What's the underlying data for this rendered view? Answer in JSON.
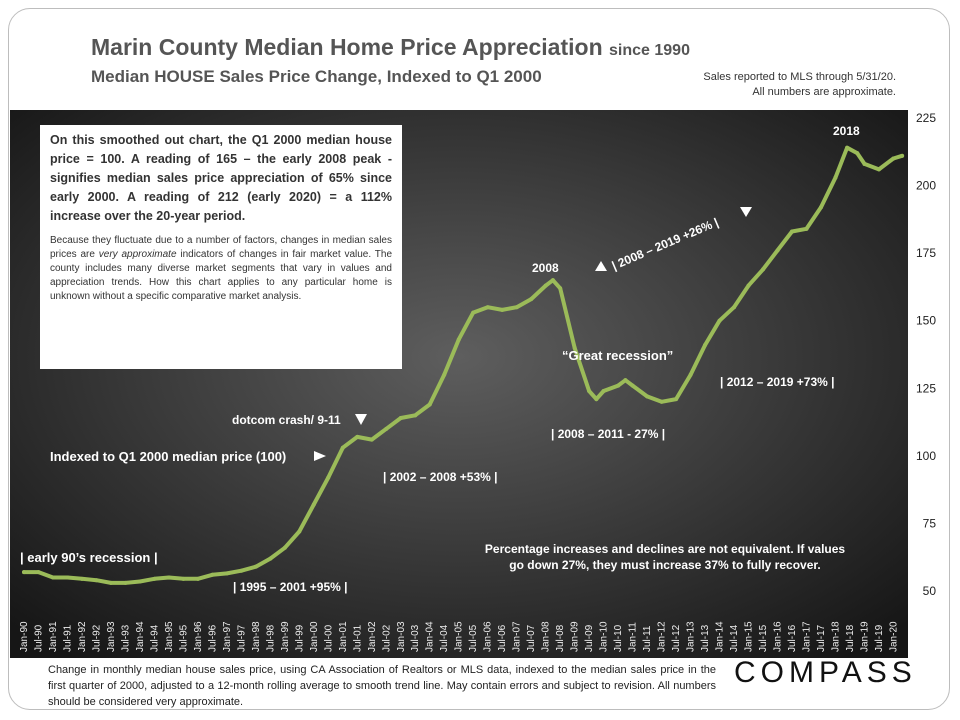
{
  "header": {
    "title": "Marin County Median Home Price Appreciation",
    "title_since": "since 1990",
    "subtitle": "Median HOUSE Sales Price Change, Indexed to Q1 2000",
    "note_line1": "Sales reported to MLS through 5/31/20.",
    "note_line2": "All numbers are approximate."
  },
  "infobox": {
    "para1": "On this smoothed out chart, the Q1 2000 median house price = 100. A reading of 165 – the early 2008 peak - signifies median sales price appreciation of 65% since early 2000.  A reading of 212 (early 2020) = a 112% increase over the 20-year period.",
    "para2_before": "Because they fluctuate due to a number of factors, changes in median sales prices are ",
    "para2_em": "very approximate",
    "para2_after": " indicators of changes in fair market value. The county includes many diverse market segments that vary in values and appreciation trends. How this chart applies to any particular home is unknown without a specific comparative market analysis."
  },
  "footer": {
    "text": "Change in monthly median house sales price, using CA Association of Realtors or MLS data, indexed to the median sales price in the first quarter of 2000, adjusted to a 12-month rolling average to smooth trend line.  May contain errors and subject to revision. All numbers should be considered very approximate.",
    "logo": "COMPASS"
  },
  "colors": {
    "line": "#9bbb59",
    "plot_bg_center": "#5e5e5e",
    "plot_bg_edge": "#161616",
    "annotation": "#ffffff"
  },
  "chart_data": {
    "type": "line",
    "title": "Marin County Median Home Price Appreciation since 1990",
    "xlabel": "",
    "ylabel": "",
    "ylim": [
      50,
      225
    ],
    "yticks": [
      50,
      75,
      100,
      125,
      150,
      175,
      200,
      225
    ],
    "grid": false,
    "legend": "none",
    "x_tick_labels": [
      "Jan-90",
      "Jul-90",
      "Jan-91",
      "Jul-91",
      "Jan-92",
      "Jul-92",
      "Jan-93",
      "Jul-93",
      "Jan-94",
      "Jul-94",
      "Jan-95",
      "Jul-95",
      "Jan-96",
      "Jul-96",
      "Jan-97",
      "Jul-97",
      "Jan-98",
      "Jul-98",
      "Jan-99",
      "Jul-99",
      "Jan-00",
      "Jul-00",
      "Jan-01",
      "Jul-01",
      "Jan-02",
      "Jul-02",
      "Jan-03",
      "Jul-03",
      "Jan-04",
      "Jul-04",
      "Jan-05",
      "Jul-05",
      "Jan-06",
      "Jul-06",
      "Jan-07",
      "Jul-07",
      "Jan-08",
      "Jul-08",
      "Jan-09",
      "Jul-09",
      "Jan-10",
      "Jul-10",
      "Jan-11",
      "Jul-11",
      "Jan-12",
      "Jul-12",
      "Jan-13",
      "Jul-13",
      "Jan-14",
      "Jul-14",
      "Jan-15",
      "Jul-15",
      "Jan-16",
      "Jul-16",
      "Jan-17",
      "Jul-17",
      "Jan-18",
      "Jul-18",
      "Jan-19",
      "Jul-19",
      "Jan-20"
    ],
    "series": [
      {
        "name": "Median house price index (Q1 2000 = 100)",
        "points": [
          [
            1990.0,
            57
          ],
          [
            1990.5,
            57
          ],
          [
            1991.0,
            55
          ],
          [
            1991.5,
            55
          ],
          [
            1992.0,
            54.5
          ],
          [
            1992.5,
            54
          ],
          [
            1993.0,
            53
          ],
          [
            1993.5,
            53
          ],
          [
            1994.0,
            53.5
          ],
          [
            1994.5,
            54.5
          ],
          [
            1995.0,
            55
          ],
          [
            1995.5,
            54.5
          ],
          [
            1996.0,
            54.5
          ],
          [
            1996.5,
            56
          ],
          [
            1997.0,
            56.5
          ],
          [
            1997.5,
            57.5
          ],
          [
            1998.0,
            59
          ],
          [
            1998.5,
            62
          ],
          [
            1999.0,
            66
          ],
          [
            1999.5,
            72
          ],
          [
            2000.0,
            82
          ],
          [
            2000.5,
            92
          ],
          [
            2001.0,
            103
          ],
          [
            2001.5,
            107
          ],
          [
            2002.0,
            106
          ],
          [
            2002.5,
            110
          ],
          [
            2003.0,
            114
          ],
          [
            2003.5,
            115
          ],
          [
            2004.0,
            119
          ],
          [
            2004.5,
            130
          ],
          [
            2005.0,
            143
          ],
          [
            2005.5,
            153
          ],
          [
            2006.0,
            155
          ],
          [
            2006.5,
            154
          ],
          [
            2007.0,
            155
          ],
          [
            2007.5,
            158
          ],
          [
            2008.0,
            163
          ],
          [
            2008.25,
            165
          ],
          [
            2008.5,
            162
          ],
          [
            2009.0,
            140
          ],
          [
            2009.5,
            124
          ],
          [
            2009.75,
            121
          ],
          [
            2010.0,
            124
          ],
          [
            2010.5,
            126
          ],
          [
            2010.75,
            128
          ],
          [
            2011.0,
            126
          ],
          [
            2011.5,
            122
          ],
          [
            2012.0,
            120
          ],
          [
            2012.5,
            121
          ],
          [
            2013.0,
            130
          ],
          [
            2013.5,
            141
          ],
          [
            2014.0,
            150
          ],
          [
            2014.5,
            155
          ],
          [
            2015.0,
            163
          ],
          [
            2015.5,
            169
          ],
          [
            2016.0,
            176
          ],
          [
            2016.5,
            183
          ],
          [
            2017.0,
            184
          ],
          [
            2017.5,
            192
          ],
          [
            2018.0,
            203
          ],
          [
            2018.4,
            214
          ],
          [
            2018.75,
            212
          ],
          [
            2019.0,
            208
          ],
          [
            2019.5,
            206
          ],
          [
            2020.0,
            210
          ],
          [
            2020.3,
            211
          ]
        ]
      }
    ],
    "annotations": {
      "early90s": "| early 90’s recession |",
      "r1995": "| 1995 – 2001 +95% |",
      "indexed": "Indexed to Q1 2000 median price (100)",
      "dotcom": "dotcom crash/ 9-11",
      "r2002": "| 2002 – 2008 +53% |",
      "peak2008": "2008",
      "great": "“Great recession”",
      "r2008": "| 2008 – 2011 - 27% |",
      "r2008_2019": "| 2008 – 2019 +26% |",
      "r2012": "| 2012 – 2019 +73% |",
      "peak2018": "2018",
      "pct_line1": "Percentage increases and declines are not equivalent. If values",
      "pct_line2": "go down 27%, they must increase 37% to fully recover."
    }
  }
}
